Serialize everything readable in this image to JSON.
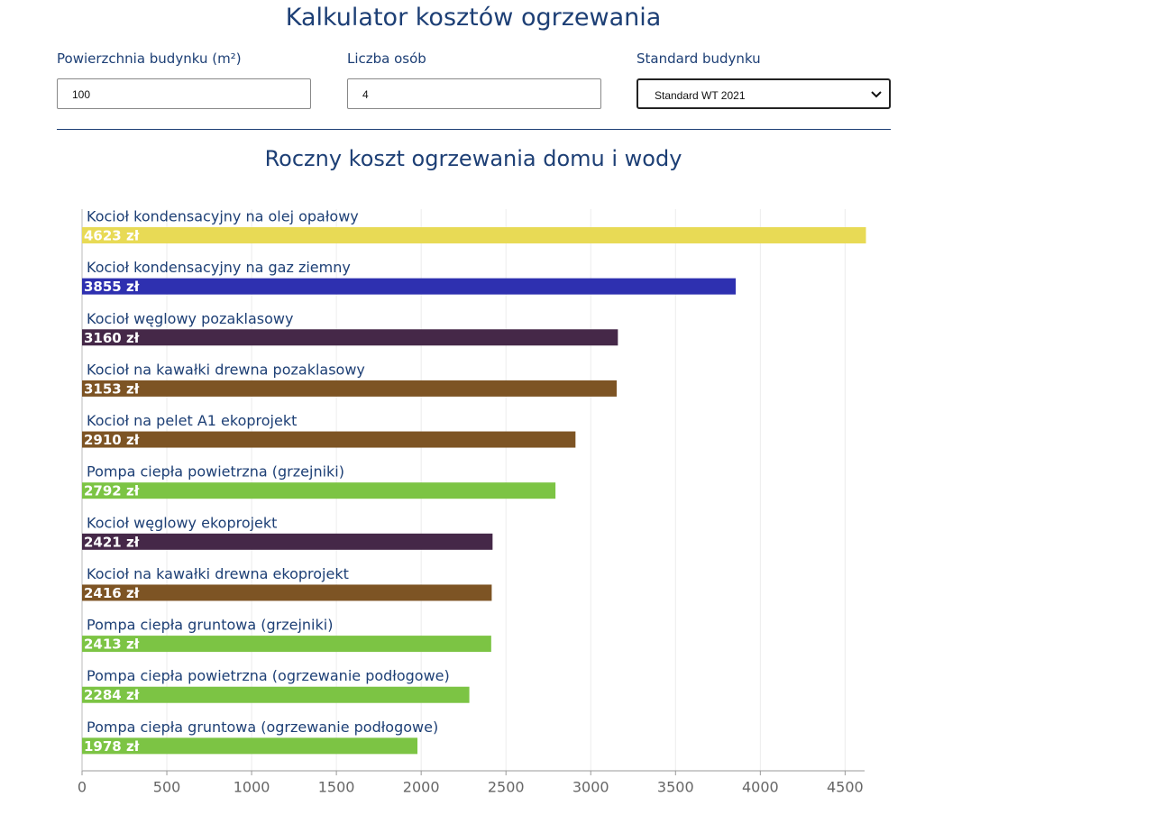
{
  "header": {
    "title": "Kalkulator kosztów ogrzewania"
  },
  "form": {
    "area": {
      "label": "Powierzchnia budynku (m²)",
      "value": "100"
    },
    "persons": {
      "label": "Liczba osób",
      "value": "4"
    },
    "standard": {
      "label": "Standard budynku",
      "value": "Standard WT 2021"
    }
  },
  "chart_data": {
    "type": "hbar",
    "title": "Roczny koszt ogrzewania domu i wody",
    "categories": [
      "Kocioł kondensacyjny na olej opałowy",
      "Kocioł kondensacyjny na gaz ziemny",
      "Kocioł węglowy pozaklasowy",
      "Kocioł na kawałki drewna pozaklasowy",
      "Kocioł na pelet A1 ekoprojekt",
      "Pompa ciepła powietrzna (grzejniki)",
      "Kocioł węglowy ekoprojekt",
      "Kocioł na kawałki drewna ekoprojekt",
      "Pompa ciepła gruntowa (grzejniki)",
      "Pompa ciepła powietrzna (ogrzewanie podłogowe)",
      "Pompa ciepła gruntowa (ogrzewanie podłogowe)"
    ],
    "values": [
      4623,
      3855,
      3160,
      3153,
      2910,
      2792,
      2421,
      2416,
      2413,
      2284,
      1978
    ],
    "value_labels": [
      "4623 zł",
      "3855 zł",
      "3160 zł",
      "3153 zł",
      "2910 zł",
      "2792 zł",
      "2421 zł",
      "2416 zł",
      "2413 zł",
      "2284 zł",
      "1978 zł"
    ],
    "colors": [
      "#e8da55",
      "#2e30b0",
      "#452848",
      "#7d5424",
      "#7d5424",
      "#7cc444",
      "#452848",
      "#7d5424",
      "#7cc444",
      "#7cc444",
      "#7cc444"
    ],
    "xlim": [
      0,
      4615
    ],
    "xticks": [
      0,
      500,
      1000,
      1500,
      2000,
      2500,
      3000,
      3500,
      4000,
      4500
    ],
    "grid": true
  }
}
